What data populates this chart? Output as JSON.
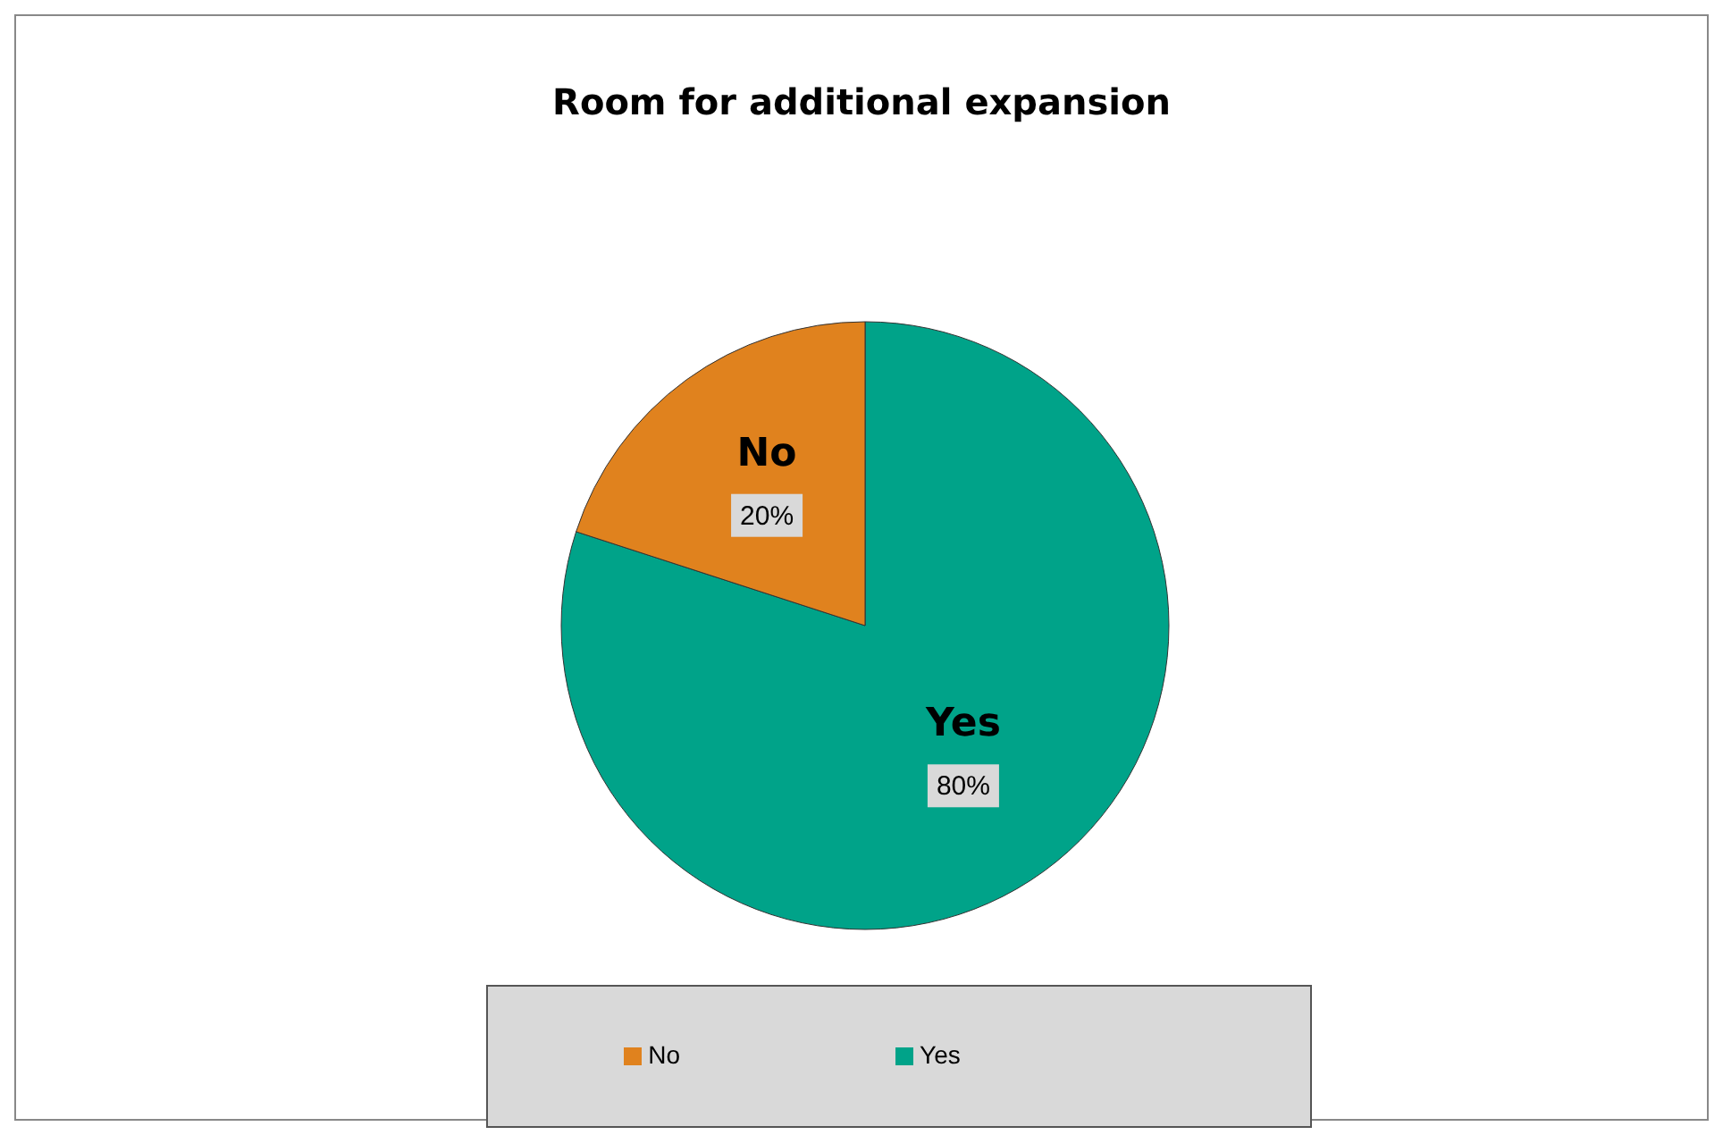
{
  "chart_data": {
    "type": "pie",
    "title": "Room for additional expansion",
    "categories": [
      "Yes",
      "No"
    ],
    "values": [
      80,
      20
    ],
    "colors": [
      "#00a389",
      "#e0821e"
    ],
    "value_labels": [
      "80%",
      "20%"
    ],
    "legend": "bottom"
  }
}
